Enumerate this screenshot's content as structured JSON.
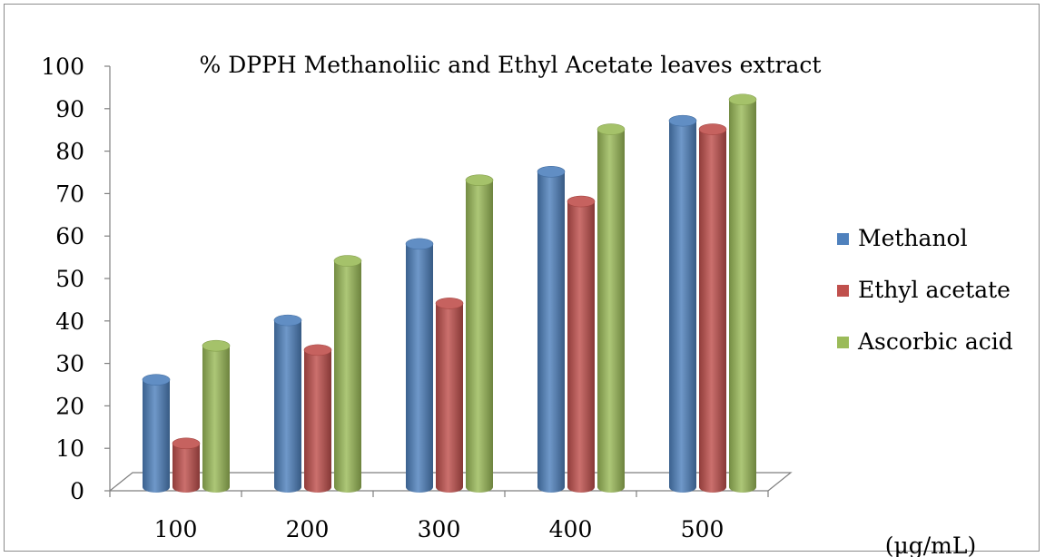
{
  "chart_data": {
    "type": "bar",
    "title": "% DPPH Methanoliic and Ethyl Acetate leaves  extract",
    "xlabel": "(µg/mL)",
    "ylabel": "",
    "categories": [
      "100",
      "200",
      "300",
      "400",
      "500"
    ],
    "ylim": [
      0,
      100
    ],
    "yticks": [
      "0",
      "10",
      "20",
      "30",
      "40",
      "50",
      "60",
      "70",
      "80",
      "90",
      "100"
    ],
    "grid": false,
    "legend_position": "right",
    "series": [
      {
        "name": "Methanol",
        "values": [
          27,
          41,
          59,
          76,
          88
        ],
        "color": "#4f81bd"
      },
      {
        "name": "Ethyl acetate",
        "values": [
          12,
          34,
          45,
          69,
          86
        ],
        "color": "#c0504d"
      },
      {
        "name": "Ascorbic acid",
        "values": [
          35,
          55,
          74,
          86,
          93
        ],
        "color": "#9bbb59"
      }
    ]
  }
}
